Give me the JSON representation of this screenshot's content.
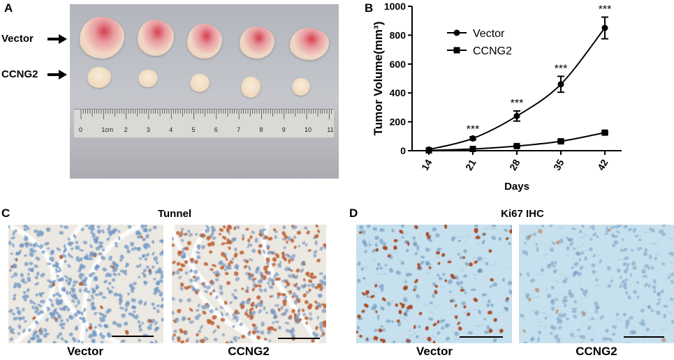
{
  "panels": {
    "a": {
      "label": "A",
      "row_vector": "Vector",
      "row_ccng2": "CCNG2",
      "ruler_labels": [
        "0",
        "1cm",
        "2",
        "3",
        "4",
        "5",
        "6",
        "7",
        "8",
        "9",
        "10",
        "11"
      ]
    },
    "b": {
      "label": "B"
    },
    "c": {
      "label": "C",
      "title": "Tunnel",
      "captions": [
        "Vector",
        "CCNG2"
      ]
    },
    "d": {
      "label": "D",
      "title": "Ki67 IHC",
      "captions": [
        "Vector",
        "CCNG2"
      ]
    }
  },
  "chart_data": {
    "type": "line",
    "title": "",
    "xlabel": "Days",
    "ylabel": "Tumor Volume(mm³)",
    "x": [
      14,
      21,
      28,
      35,
      42
    ],
    "xlim": [
      14,
      42
    ],
    "ylim": [
      0,
      1000
    ],
    "yticks": [
      0,
      200,
      400,
      600,
      800,
      1000
    ],
    "grid": false,
    "legend_position": "top-left",
    "series": [
      {
        "name": "Vector",
        "marker": "circle",
        "values": [
          8,
          85,
          240,
          460,
          850
        ],
        "errors": [
          3,
          10,
          35,
          55,
          75
        ]
      },
      {
        "name": "CCNG2",
        "marker": "square",
        "values": [
          2,
          12,
          32,
          65,
          125
        ],
        "errors": [
          1,
          3,
          5,
          6,
          8
        ]
      }
    ],
    "annotations": [
      {
        "x": 21,
        "text": "***"
      },
      {
        "x": 28,
        "text": "***"
      },
      {
        "x": 35,
        "text": "***"
      },
      {
        "x": 42,
        "text": "***"
      }
    ]
  },
  "colors": {
    "line": "#000000",
    "ihc_background": "#c6e0ee",
    "tunnel_background": "#ece8e2"
  }
}
